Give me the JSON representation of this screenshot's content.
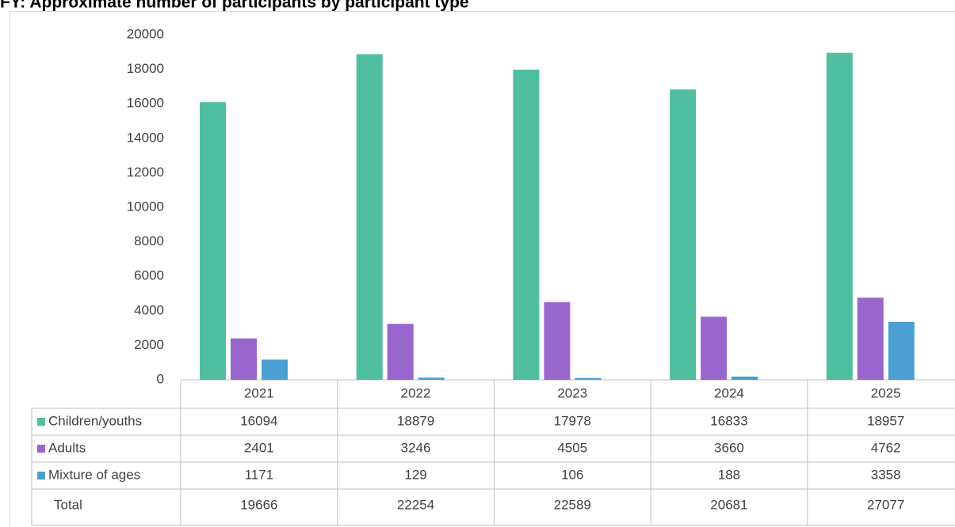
{
  "chart_data": {
    "type": "bar",
    "title": "FY: Approximate number of participants by participant type",
    "categories": [
      "2021",
      "2022",
      "2023",
      "2024",
      "2025"
    ],
    "series": [
      {
        "name": "Children/youths",
        "color": "#4fbfa0",
        "values": [
          16094,
          18879,
          17978,
          16833,
          18957
        ]
      },
      {
        "name": "Adults",
        "color": "#9966cc",
        "values": [
          2401,
          3246,
          4505,
          3660,
          4762
        ]
      },
      {
        "name": "Mixture of ages",
        "color": "#4b9fd2",
        "values": [
          1171,
          129,
          106,
          188,
          3358
        ]
      }
    ],
    "totals": {
      "name": "Total",
      "values": [
        19666,
        22254,
        22589,
        20681,
        27077
      ]
    },
    "ylim": [
      0,
      20000
    ],
    "yticks": [
      0,
      2000,
      4000,
      6000,
      8000,
      10000,
      12000,
      14000,
      16000,
      18000,
      20000
    ],
    "grid": false
  }
}
